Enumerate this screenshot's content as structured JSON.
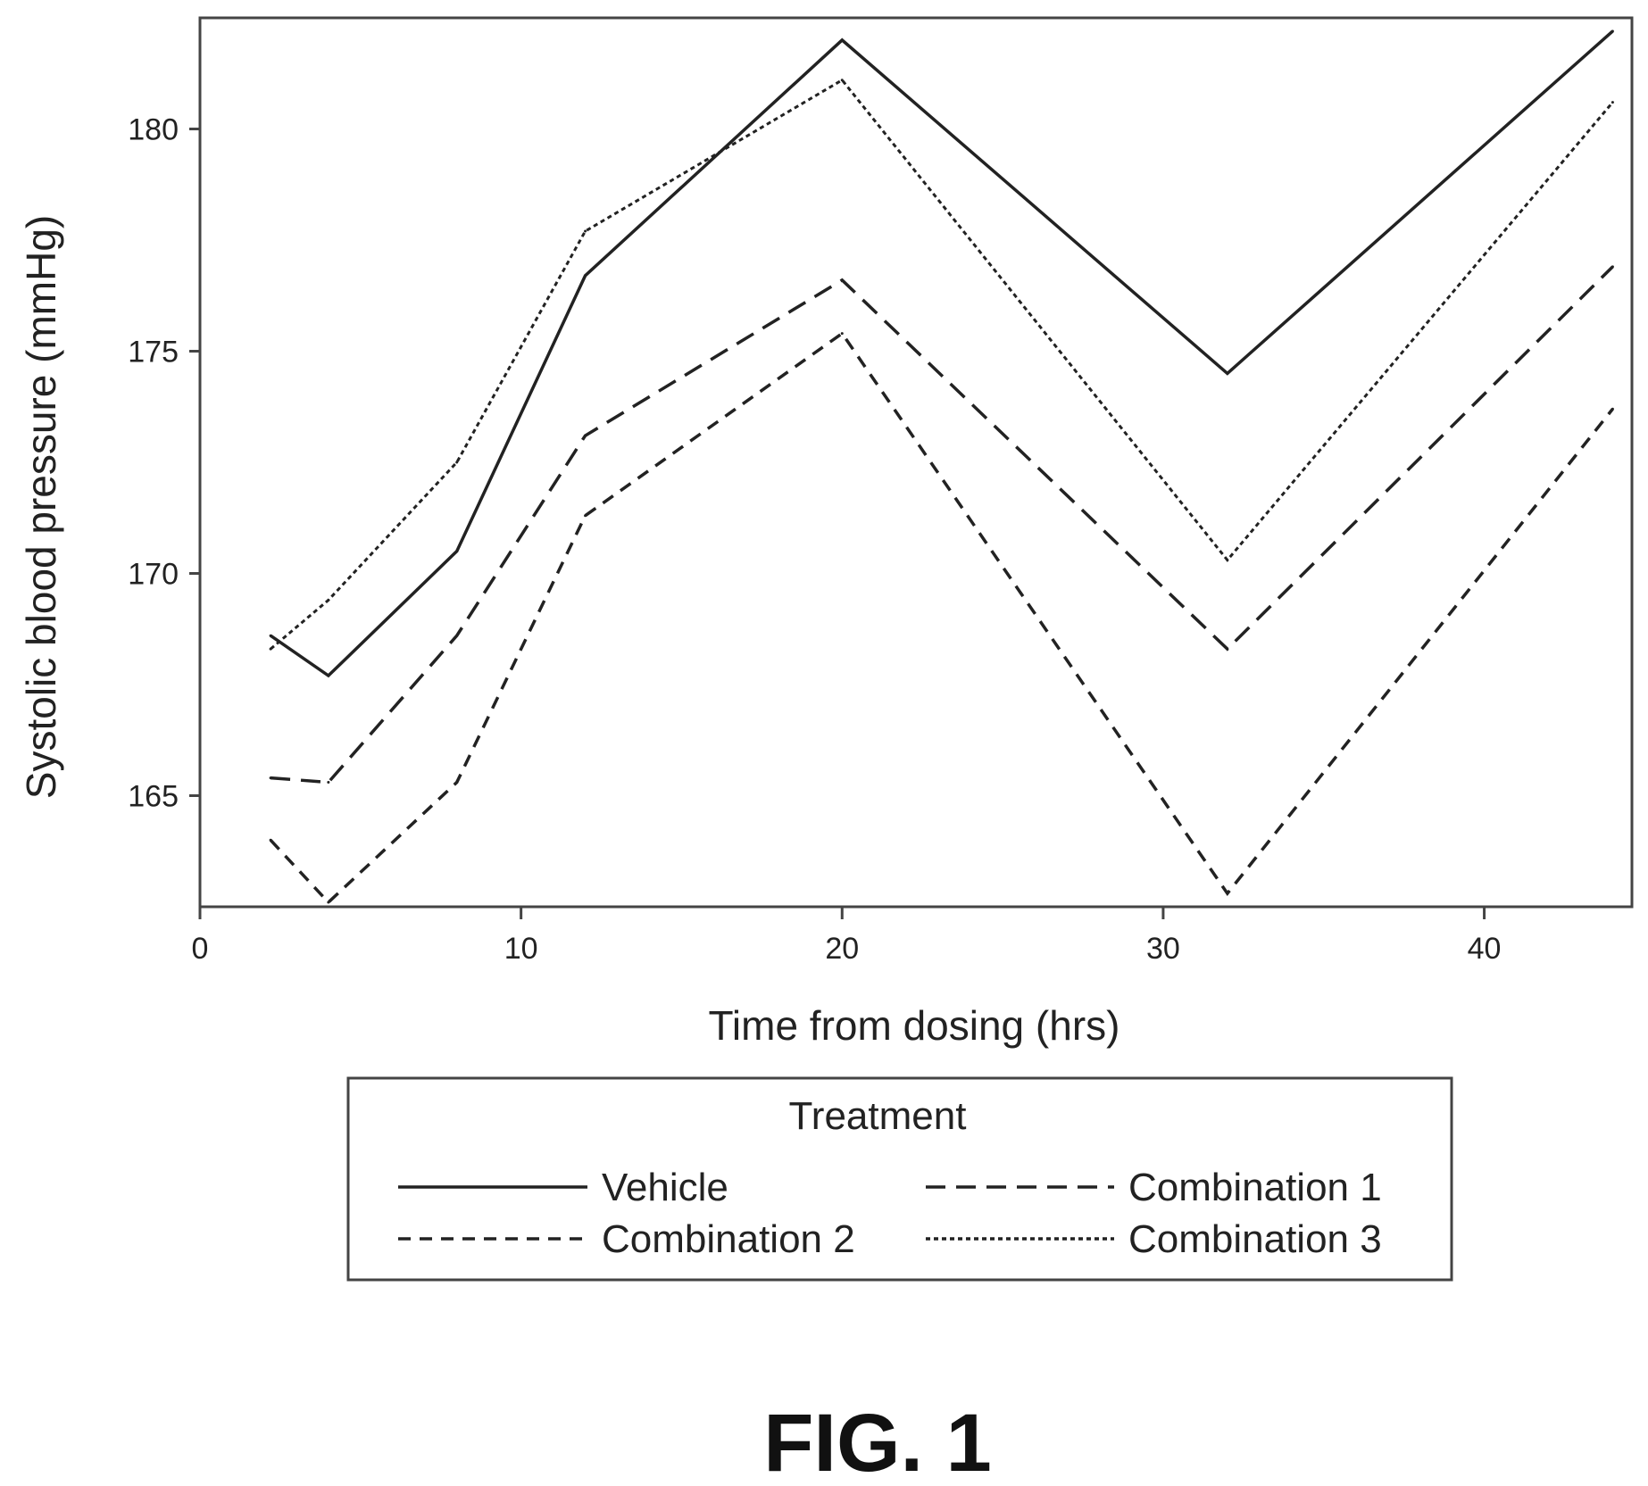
{
  "chart_data": {
    "type": "line",
    "xlabel": "Time from dosing (hrs)",
    "ylabel": "Systolic blood pressure (mmHg)",
    "xlim": [
      0,
      44.6
    ],
    "ylim": [
      162.5,
      182.5
    ],
    "xticks": [
      0,
      10,
      20,
      30,
      40
    ],
    "yticks": [
      165,
      170,
      175,
      180
    ],
    "xtick_labels": [
      "0",
      "10",
      "20",
      "30",
      "40"
    ],
    "ytick_labels": [
      "165",
      "170",
      "175",
      "180"
    ],
    "grid": false,
    "legend": {
      "title": "Treatment",
      "placement": "below",
      "columns": 2
    },
    "x": [
      2.2,
      4,
      8,
      12,
      20,
      32,
      44
    ],
    "series": [
      {
        "name": "Vehicle",
        "style": "solid",
        "values": [
          168.6,
          167.7,
          170.5,
          176.7,
          182.0,
          174.5,
          182.2
        ]
      },
      {
        "name": "Combination 1",
        "style": "longdash",
        "values": [
          165.4,
          165.3,
          168.6,
          173.1,
          176.6,
          168.3,
          176.9
        ]
      },
      {
        "name": "Combination 2",
        "style": "dash",
        "values": [
          164.0,
          162.6,
          165.3,
          171.3,
          175.4,
          162.8,
          173.7
        ]
      },
      {
        "name": "Combination 3",
        "style": "dot",
        "values": [
          168.3,
          169.4,
          172.5,
          177.7,
          181.1,
          170.3,
          180.6
        ]
      }
    ]
  },
  "caption": "FIG. 1"
}
